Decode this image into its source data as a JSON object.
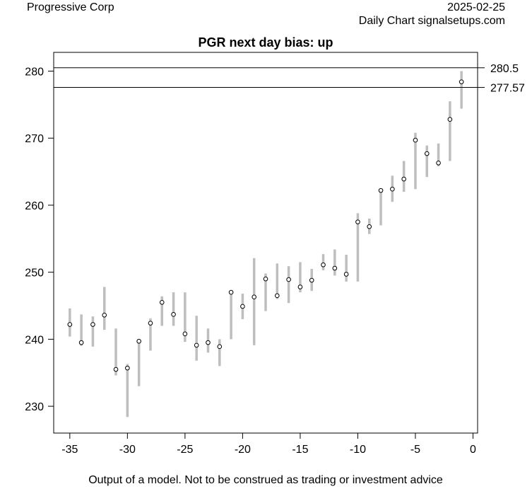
{
  "header": {
    "company": "Progressive Corp",
    "date": "2025-02-25",
    "source": "Daily Chart signalsetups.com"
  },
  "footer": "Output of a model. Not to be construed as trading or investment advice",
  "chart_data": {
    "type": "candlestick-range",
    "title": "PGR next day bias: up",
    "xlim": [
      -36.4,
      0.4
    ],
    "ylim": [
      226,
      282.8
    ],
    "x_ticks": [
      -35,
      -30,
      -25,
      -20,
      -15,
      -10,
      -5,
      0
    ],
    "y_ticks": [
      230,
      240,
      250,
      260,
      270,
      280
    ],
    "levels": [
      {
        "value": 280.5,
        "label": "280.5"
      },
      {
        "value": 277.57,
        "label": "277.57"
      }
    ],
    "range_color": "#bebebe",
    "points": [
      {
        "x": -35,
        "low": 240.4,
        "high": 244.6,
        "close": 242.2
      },
      {
        "x": -34,
        "low": 239.0,
        "high": 243.7,
        "close": 239.5
      },
      {
        "x": -33,
        "low": 238.9,
        "high": 243.4,
        "close": 242.2
      },
      {
        "x": -32,
        "low": 241.4,
        "high": 247.8,
        "close": 243.6
      },
      {
        "x": -31,
        "low": 234.6,
        "high": 241.6,
        "close": 235.5
      },
      {
        "x": -30,
        "low": 228.4,
        "high": 236.3,
        "close": 235.7
      },
      {
        "x": -29,
        "low": 233.0,
        "high": 240.0,
        "close": 239.7
      },
      {
        "x": -28,
        "low": 238.3,
        "high": 243.1,
        "close": 242.4
      },
      {
        "x": -27,
        "low": 242.0,
        "high": 246.4,
        "close": 245.5
      },
      {
        "x": -26,
        "low": 242.0,
        "high": 247.0,
        "close": 243.7
      },
      {
        "x": -25,
        "low": 239.6,
        "high": 247.0,
        "close": 240.8
      },
      {
        "x": -24,
        "low": 236.8,
        "high": 243.5,
        "close": 239.1
      },
      {
        "x": -23,
        "low": 238.0,
        "high": 241.6,
        "close": 239.5
      },
      {
        "x": -22,
        "low": 236.0,
        "high": 240.0,
        "close": 238.9
      },
      {
        "x": -21,
        "low": 240.0,
        "high": 247.0,
        "close": 247.0
      },
      {
        "x": -20,
        "low": 243.0,
        "high": 246.8,
        "close": 244.9
      },
      {
        "x": -19,
        "low": 239.1,
        "high": 252.1,
        "close": 246.3
      },
      {
        "x": -18,
        "low": 244.2,
        "high": 249.8,
        "close": 249.0
      },
      {
        "x": -17,
        "low": 246.0,
        "high": 251.3,
        "close": 246.5
      },
      {
        "x": -16,
        "low": 245.4,
        "high": 250.9,
        "close": 248.9
      },
      {
        "x": -15,
        "low": 247.0,
        "high": 251.5,
        "close": 247.8
      },
      {
        "x": -14,
        "low": 247.2,
        "high": 250.5,
        "close": 248.8
      },
      {
        "x": -13,
        "low": 250.3,
        "high": 252.7,
        "close": 251.1
      },
      {
        "x": -12,
        "low": 249.5,
        "high": 253.4,
        "close": 250.6
      },
      {
        "x": -11,
        "low": 248.6,
        "high": 252.6,
        "close": 249.7
      },
      {
        "x": -10,
        "low": 248.6,
        "high": 258.8,
        "close": 257.5
      },
      {
        "x": -9,
        "low": 255.7,
        "high": 258.0,
        "close": 256.8
      },
      {
        "x": -8,
        "low": 257.0,
        "high": 262.4,
        "close": 262.2
      },
      {
        "x": -7,
        "low": 260.5,
        "high": 264.4,
        "close": 262.4
      },
      {
        "x": -6,
        "low": 262.0,
        "high": 266.6,
        "close": 263.9
      },
      {
        "x": -5,
        "low": 262.4,
        "high": 270.8,
        "close": 269.7
      },
      {
        "x": -4,
        "low": 264.2,
        "high": 268.9,
        "close": 267.7
      },
      {
        "x": -3,
        "low": 265.8,
        "high": 269.2,
        "close": 266.3
      },
      {
        "x": -2,
        "low": 266.6,
        "high": 275.5,
        "close": 272.8
      },
      {
        "x": -1,
        "low": 274.4,
        "high": 280.0,
        "close": 278.4
      }
    ]
  }
}
